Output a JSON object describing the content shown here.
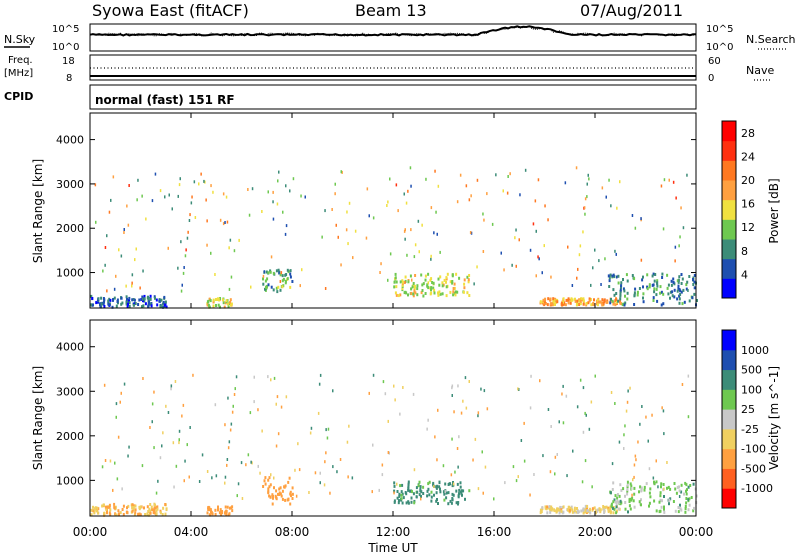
{
  "header": {
    "title": "Syowa East (fitACF)",
    "beam": "Beam 13",
    "date": "07/Aug/2011"
  },
  "top_panels": {
    "nsky_label": "N.Sky",
    "nsearch_label": "N.Search",
    "freq_label": "Freq.",
    "freq_unit": "[MHz]",
    "nave_label": "Nave",
    "cpid_label": "CPID",
    "cpid_value": "normal (fast) 151 RF",
    "noise_ticks_left": [
      "10^5",
      "10^0"
    ],
    "noise_ticks_right": [
      "10^5",
      "10^0"
    ],
    "freq_ticks_left": [
      "18",
      "8"
    ],
    "freq_ticks_right": [
      "60",
      "0"
    ]
  },
  "colors": {
    "power_scale": [
      "#0000ff",
      "#1e4fb0",
      "#3c8c78",
      "#6ec850",
      "#f0e040",
      "#ffa040",
      "#ff7820",
      "#ff3010",
      "#ff0000"
    ],
    "velocity_scale": [
      "#ff0000",
      "#ff6020",
      "#ffa040",
      "#f0d060",
      "#c8c8c8",
      "#6ec850",
      "#3c8c78",
      "#1e4fb0",
      "#0000ff"
    ]
  },
  "chart_data": [
    {
      "type": "heatmap",
      "title": "",
      "xlabel": "Time UT",
      "ylabel": "Slant Range [km]",
      "x_ticks": [
        "00:00",
        "04:00",
        "08:00",
        "12:00",
        "16:00",
        "20:00",
        "00:00"
      ],
      "y_ticks": [
        1000,
        2000,
        3000,
        4000
      ],
      "ylim": [
        200,
        4600
      ],
      "xlim_hours": [
        0,
        24
      ],
      "colorbar": {
        "label": "Power [dB]",
        "ticks": [
          4,
          8,
          12,
          16,
          20,
          24,
          28
        ],
        "range": [
          0,
          30
        ]
      },
      "echo_regions": [
        {
          "t0": 0.0,
          "t1": 3.0,
          "r0": 250,
          "r1": 500,
          "value": 6
        },
        {
          "t0": 4.6,
          "t1": 5.6,
          "r0": 250,
          "r1": 450,
          "value": 14
        },
        {
          "t0": 6.8,
          "t1": 8.0,
          "r0": 600,
          "r1": 1100,
          "value": 10
        },
        {
          "t0": 12.0,
          "t1": 15.0,
          "r0": 500,
          "r1": 1000,
          "value": 14
        },
        {
          "t0": 17.8,
          "t1": 21.0,
          "r0": 300,
          "r1": 450,
          "value": 18
        },
        {
          "t0": 20.5,
          "t1": 24.0,
          "r0": 300,
          "r1": 1000,
          "value": 8
        }
      ]
    },
    {
      "type": "heatmap",
      "title": "",
      "xlabel": "Time UT",
      "ylabel": "Slant Range [km]",
      "x_ticks": [
        "00:00",
        "04:00",
        "08:00",
        "12:00",
        "16:00",
        "20:00",
        "00:00"
      ],
      "y_ticks": [
        1000,
        2000,
        3000,
        4000
      ],
      "ylim": [
        200,
        4600
      ],
      "xlim_hours": [
        0,
        24
      ],
      "colorbar": {
        "label": "Velocity [m s^-1]",
        "ticks": [
          1000,
          500,
          100,
          25,
          -25,
          -100,
          -500,
          -1000
        ]
      },
      "echo_regions": [
        {
          "t0": 0.0,
          "t1": 3.0,
          "r0": 250,
          "r1": 500,
          "value": -100
        },
        {
          "t0": 4.6,
          "t1": 5.6,
          "r0": 250,
          "r1": 450,
          "value": -200
        },
        {
          "t0": 6.8,
          "t1": 8.0,
          "r0": 500,
          "r1": 1100,
          "value": -300
        },
        {
          "t0": 12.0,
          "t1": 15.0,
          "r0": 500,
          "r1": 1000,
          "value": 150
        },
        {
          "t0": 17.8,
          "t1": 21.0,
          "r0": 300,
          "r1": 450,
          "value": -50
        },
        {
          "t0": 20.5,
          "t1": 24.0,
          "r0": 300,
          "r1": 1000,
          "value": 50
        }
      ]
    }
  ]
}
